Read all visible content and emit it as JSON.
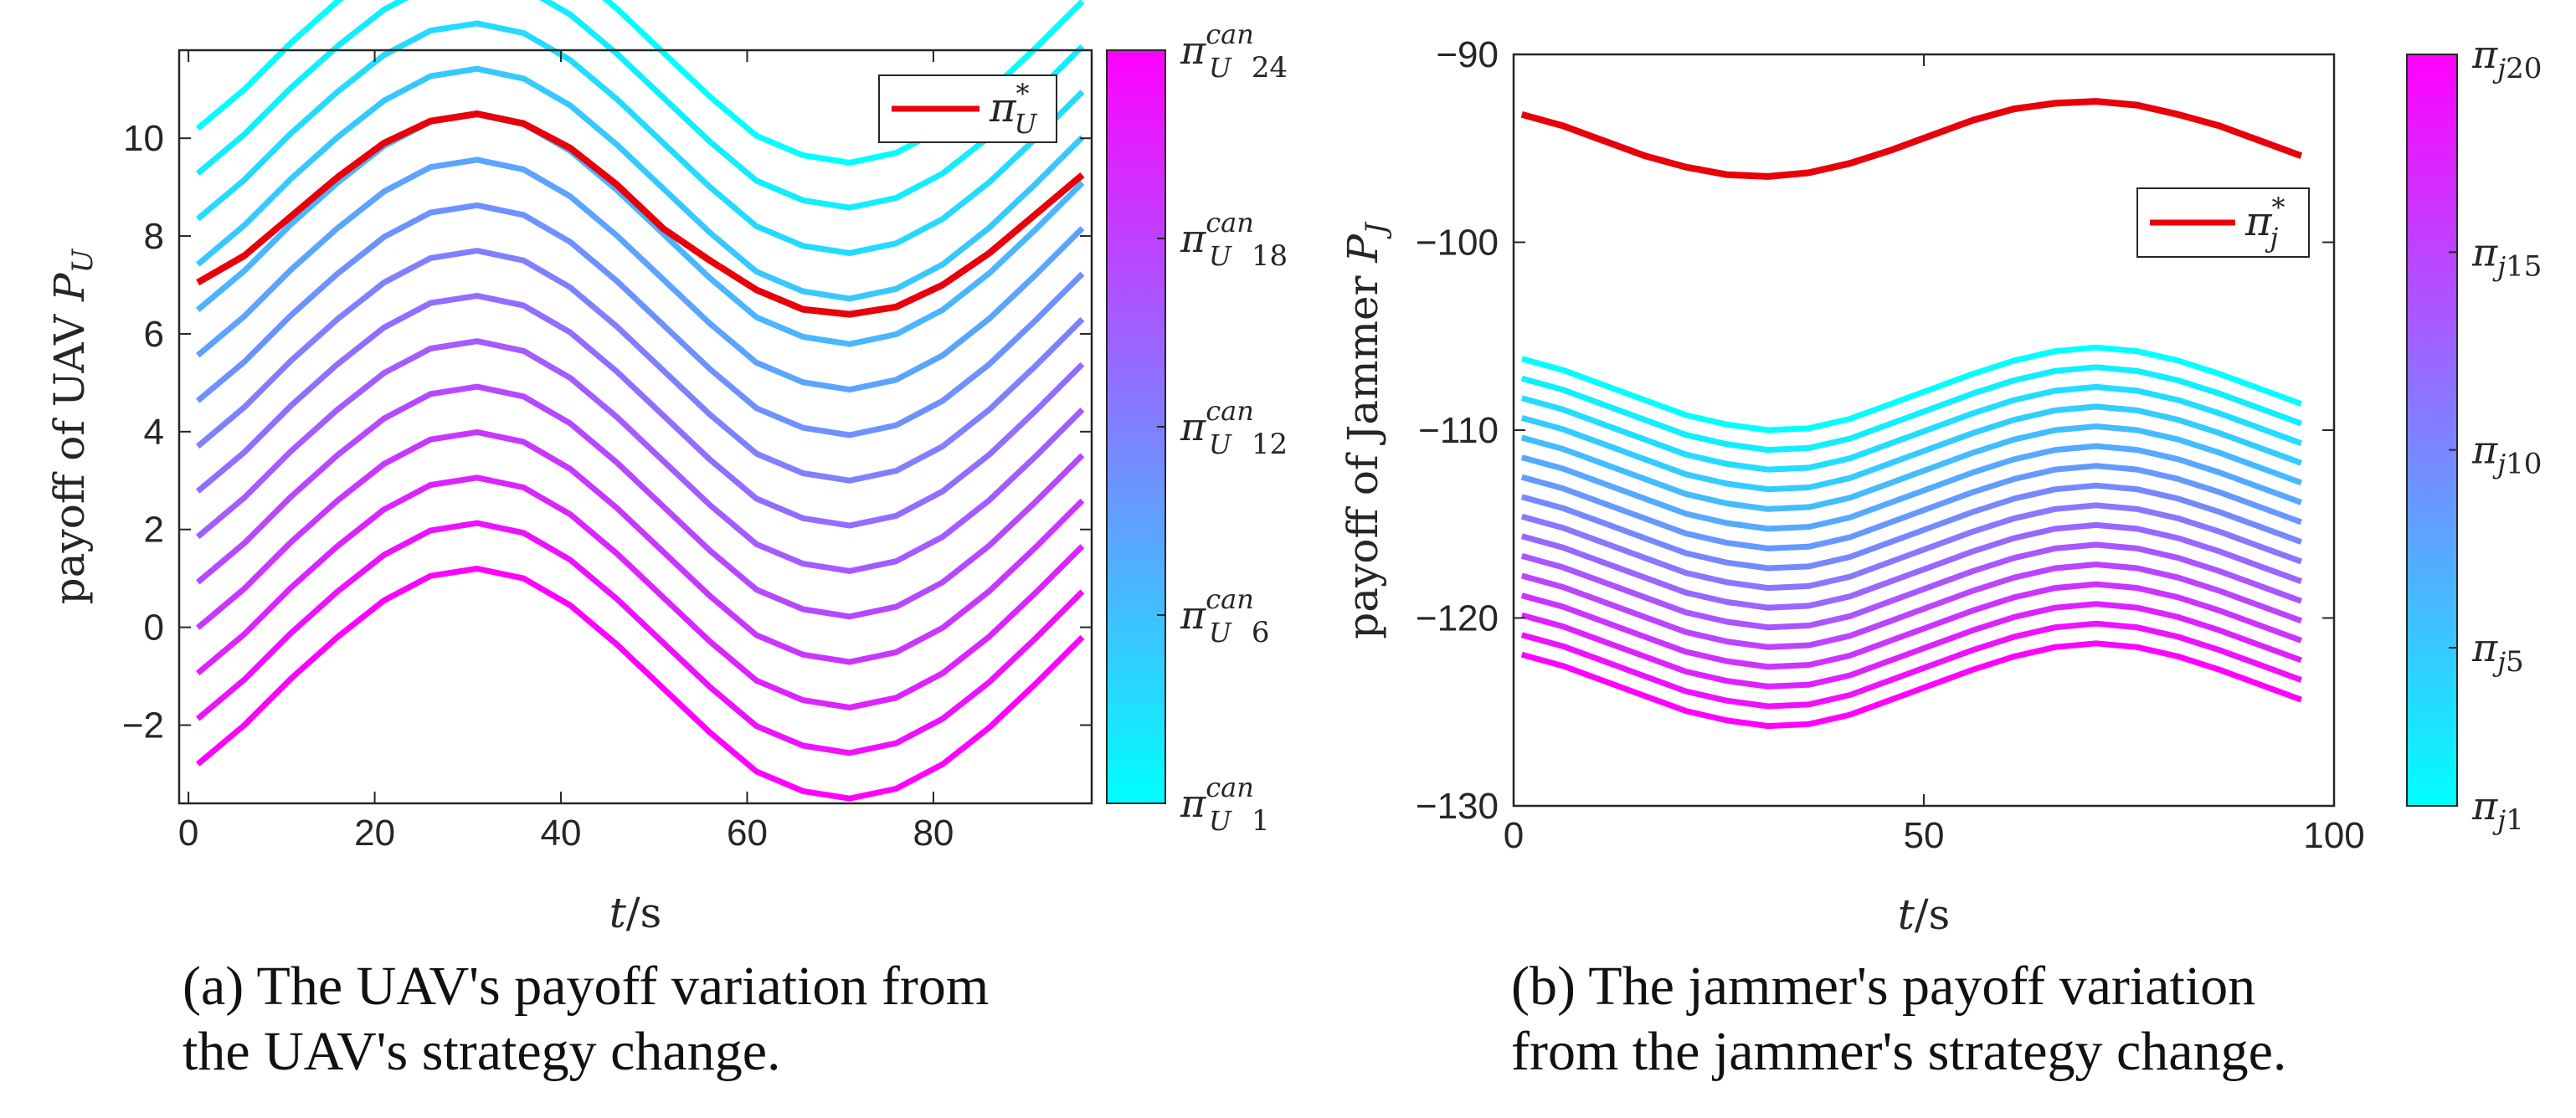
{
  "chart_data": [
    {
      "type": "line",
      "panel": "a",
      "title": "",
      "xlabel_var": "t",
      "xlabel_unit": "/s",
      "ylabel_text": "payoff of UAV ",
      "ylabel_var": "P",
      "ylabel_sub": "U",
      "xlim": [
        -1,
        97
      ],
      "ylim": [
        -3.6,
        11.8
      ],
      "xticks": [
        "0",
        "20",
        "40",
        "60",
        "80"
      ],
      "xtick_values": [
        0,
        20,
        40,
        60,
        80
      ],
      "yticks": [
        "−2",
        "0",
        "2",
        "4",
        "6",
        "8",
        "10"
      ],
      "ytick_values": [
        -2,
        0,
        2,
        4,
        6,
        8,
        10
      ],
      "x": [
        1,
        6,
        11,
        16,
        21,
        26,
        31,
        36,
        41,
        46,
        51,
        56,
        61,
        66,
        71,
        76,
        81,
        86,
        91,
        96
      ],
      "optimal_series": {
        "name": "π*U",
        "color": "#e8000b",
        "values": [
          7.05,
          7.6,
          8.4,
          9.2,
          9.9,
          10.35,
          10.5,
          10.3,
          9.8,
          9.05,
          8.15,
          7.5,
          6.9,
          6.5,
          6.4,
          6.55,
          7.0,
          7.65,
          8.45,
          9.25
        ]
      },
      "candidate_series": {
        "count": 15,
        "base_values": [
          -2.8,
          -2.0,
          -1.05,
          -0.2,
          0.55,
          1.05,
          1.2,
          1.0,
          0.45,
          -0.35,
          -1.25,
          -2.15,
          -2.95,
          -3.35,
          -3.5,
          -3.3,
          -2.8,
          -2.05,
          -1.15,
          -0.2
        ],
        "offsets": [
          0,
          0.93,
          1.86,
          2.79,
          3.72,
          4.65,
          5.58,
          6.5,
          7.43,
          8.36,
          9.29,
          10.22,
          11.15,
          12.08,
          13.0
        ],
        "colormap": [
          "#00ffff",
          "#ff00ff"
        ]
      },
      "legend": {
        "label_base": "π",
        "label_sub": "U",
        "label_sup": "*",
        "position": "top-right"
      },
      "colorbar": {
        "ticks": [
          "1",
          "6",
          "12",
          "18",
          "24"
        ],
        "tick_fractions": [
          0,
          0.25,
          0.5,
          0.75,
          1
        ],
        "label_base": "π",
        "label_sub": "U",
        "label_sup": "can"
      },
      "caption": "(a)  The UAV's payoff variation from\n the UAV's strategy change."
    },
    {
      "type": "line",
      "panel": "b",
      "title": "",
      "xlabel_var": "t",
      "xlabel_unit": "/s",
      "ylabel_text": "payoff of Jammer ",
      "ylabel_var": "P",
      "ylabel_sub": "J",
      "xlim": [
        0,
        100
      ],
      "ylim": [
        -130,
        -90
      ],
      "xticks": [
        "0",
        "50",
        "100"
      ],
      "xtick_values": [
        0,
        50,
        100
      ],
      "yticks": [
        "−130",
        "−120",
        "−110",
        "−100",
        "−90"
      ],
      "ytick_values": [
        -130,
        -120,
        -110,
        -100,
        -90
      ],
      "x": [
        1,
        6,
        11,
        16,
        21,
        26,
        31,
        36,
        41,
        46,
        51,
        56,
        61,
        66,
        71,
        76,
        81,
        86,
        91,
        96
      ],
      "optimal_series": {
        "name": "π*j",
        "color": "#e8000b",
        "values": [
          -93.2,
          -93.8,
          -94.6,
          -95.4,
          -96.0,
          -96.4,
          -96.5,
          -96.3,
          -95.8,
          -95.1,
          -94.3,
          -93.5,
          -92.9,
          -92.6,
          -92.5,
          -92.7,
          -93.2,
          -93.8,
          -94.6,
          -95.4
        ]
      },
      "candidate_series": {
        "count": 16,
        "base_values": [
          -106.2,
          -106.8,
          -107.6,
          -108.4,
          -109.2,
          -109.7,
          -110.0,
          -109.9,
          -109.4,
          -108.6,
          -107.8,
          -107.0,
          -106.3,
          -105.8,
          -105.6,
          -105.8,
          -106.3,
          -107.0,
          -107.8,
          -108.6
        ],
        "offsets": [
          0,
          -1.05,
          -2.1,
          -3.15,
          -4.2,
          -5.25,
          -6.3,
          -7.35,
          -8.4,
          -9.45,
          -10.5,
          -11.55,
          -12.6,
          -13.65,
          -14.7,
          -15.75
        ],
        "colormap": [
          "#00ffff",
          "#ff00ff"
        ]
      },
      "legend": {
        "label_base": "π",
        "label_sub": "j",
        "label_sup": "*",
        "position": "top-right"
      },
      "colorbar": {
        "ticks": [
          "1",
          "5",
          "10",
          "15",
          "20"
        ],
        "tick_fractions": [
          0,
          0.2105,
          0.4737,
          0.7368,
          1
        ],
        "label_base": "π",
        "label_sub": "j",
        "label_sup": ""
      },
      "caption": " (b)  The jammer's payoff variation\nfrom the jammer's strategy change."
    }
  ]
}
